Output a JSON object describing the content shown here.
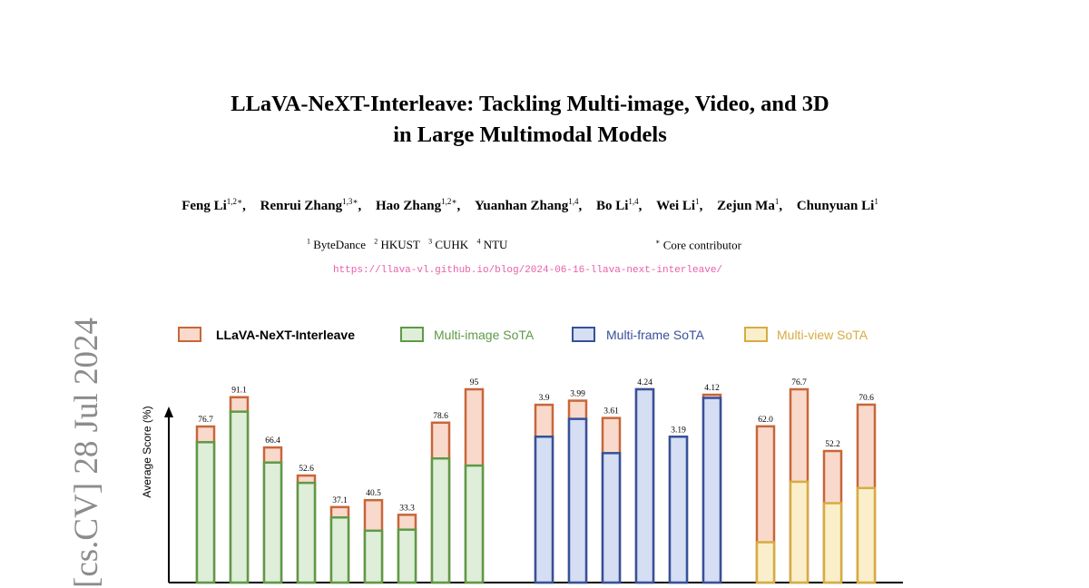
{
  "paper": {
    "title_line1": "LLaVA-NeXT-Interleave: Tackling Multi-image, Video, and 3D",
    "title_line2": "in Large Multimodal Models",
    "authors": [
      {
        "name": "Feng Li",
        "sup": "1,2∗"
      },
      {
        "name": "Renrui Zhang",
        "sup": "1,3∗"
      },
      {
        "name": "Hao Zhang",
        "sup": "1,2∗"
      },
      {
        "name": "Yuanhan Zhang",
        "sup": "1,4"
      },
      {
        "name": "Bo Li",
        "sup": "1,4"
      },
      {
        "name": "Wei Li",
        "sup": "1"
      },
      {
        "name": "Zejun Ma",
        "sup": "1"
      },
      {
        "name": "Chunyuan Li",
        "sup": "1"
      }
    ],
    "affiliations": [
      {
        "sup": "1",
        "name": "ByteDance"
      },
      {
        "sup": "2",
        "name": "HKUST"
      },
      {
        "sup": "3",
        "name": "CUHK"
      },
      {
        "sup": "4",
        "name": "NTU"
      }
    ],
    "core_contributor": {
      "sup": "∗",
      "text": "Core contributor"
    },
    "url": "https://llava-vl.github.io/blog/2024-06-16-llava-next-interleave/",
    "arxiv_stamp": "[cs.CV]  28 Jul 2024"
  },
  "chart_data": {
    "type": "bar",
    "ylabel": "Average Score (%)",
    "legend_position": "top",
    "colors": {
      "interleave": {
        "stroke": "#c8663a",
        "fill": "#f9d9cb"
      },
      "multi_image": {
        "stroke": "#5d9a47",
        "fill": "#dfeed8"
      },
      "multi_frame": {
        "stroke": "#35519b",
        "fill": "#d5def2"
      },
      "multi_view": {
        "stroke": "#d6ac42",
        "fill": "#fbefcb"
      }
    },
    "legend": [
      {
        "key": "interleave",
        "label": "LLaVA-NeXT-Interleave"
      },
      {
        "key": "multi_image",
        "label": "Multi-image SoTA"
      },
      {
        "key": "multi_frame",
        "label": "Multi-frame SoTA"
      },
      {
        "key": "multi_view",
        "label": "Multi-view SoTA"
      }
    ],
    "groups": [
      {
        "sota_key": "multi_image",
        "scale_max": 95,
        "bars": [
          {
            "label": "76.7",
            "interleave": 76.7,
            "sota": 69.0
          },
          {
            "label": "91.1",
            "interleave": 91.1,
            "sota": 84.0
          },
          {
            "label": "66.4",
            "interleave": 66.4,
            "sota": 59.0
          },
          {
            "label": "52.6",
            "interleave": 52.6,
            "sota": 49.0
          },
          {
            "label": "37.1",
            "interleave": 37.1,
            "sota": 32.0
          },
          {
            "label": "40.5",
            "interleave": 40.5,
            "sota": 25.5
          },
          {
            "label": "33.3",
            "interleave": 33.3,
            "sota": 26.0
          },
          {
            "label": "78.6",
            "interleave": 78.6,
            "sota": 61.0
          },
          {
            "label": "95",
            "interleave": 95.0,
            "sota": 57.5
          }
        ]
      },
      {
        "sota_key": "multi_frame",
        "scale_max": 4.24,
        "bars": [
          {
            "label": "3.9",
            "interleave": 3.9,
            "sota": 3.2
          },
          {
            "label": "3.99",
            "interleave": 3.99,
            "sota": 3.59
          },
          {
            "label": "3.61",
            "interleave": 3.61,
            "sota": 2.84
          },
          {
            "label": "4.24",
            "interleave": 4.24,
            "sota": 4.24
          },
          {
            "label": "3.19",
            "interleave": 3.19,
            "sota": 3.2
          },
          {
            "label": "4.12",
            "interleave": 4.12,
            "sota": 4.05
          }
        ]
      },
      {
        "sota_key": "multi_view",
        "scale_max": 76.7,
        "bars": [
          {
            "label": "62.0",
            "interleave": 62.0,
            "sota": 16.0
          },
          {
            "label": "76.7",
            "interleave": 76.7,
            "sota": 40.0
          },
          {
            "label": "52.2",
            "interleave": 52.2,
            "sota": 31.5
          },
          {
            "label": "70.6",
            "interleave": 70.6,
            "sota": 37.5
          }
        ]
      }
    ]
  }
}
